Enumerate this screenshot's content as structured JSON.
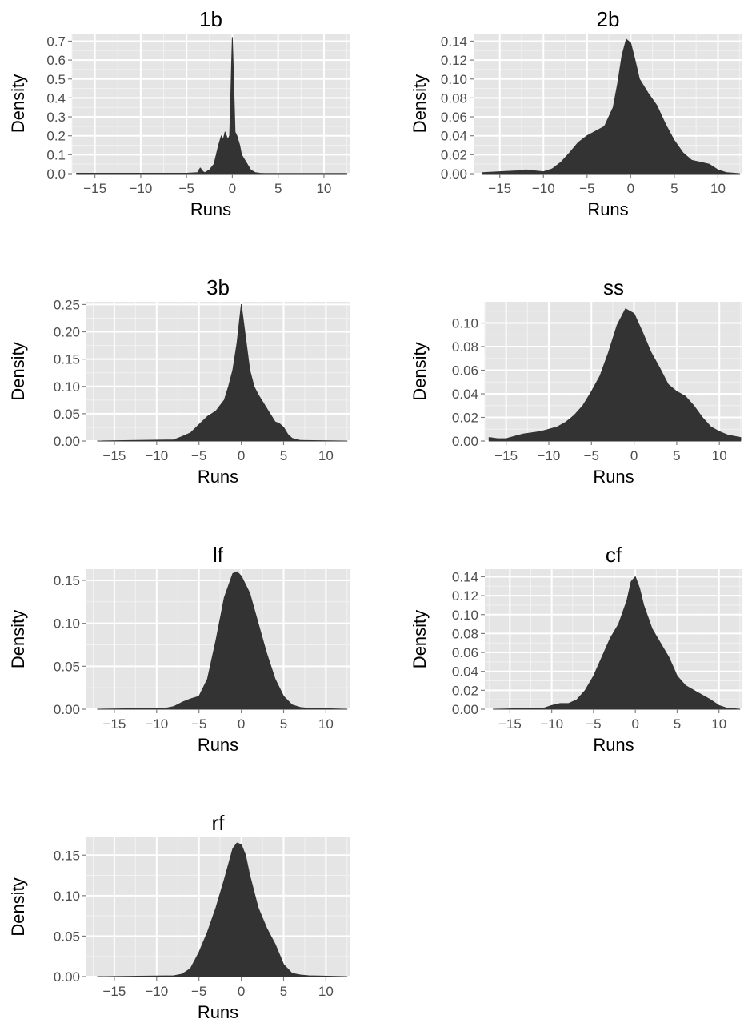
{
  "chart_data": [
    {
      "type": "area",
      "title": "1b",
      "xlabel": "Runs",
      "ylabel": "Density",
      "xlim": [
        -17.5,
        12.8
      ],
      "ylim": [
        0,
        0.74
      ],
      "xticks": [
        -15,
        -10,
        -5,
        0,
        5,
        10
      ],
      "xtick_labels": [
        "−15",
        "−10",
        "−5",
        "0",
        "5",
        "10"
      ],
      "yticks": [
        0,
        0.1,
        0.2,
        0.3,
        0.4,
        0.5,
        0.6,
        0.7
      ],
      "ytick_labels": [
        "0.0",
        "0.1",
        "0.2",
        "0.3",
        "0.4",
        "0.5",
        "0.6",
        "0.7"
      ],
      "grid": true,
      "x": [
        -17,
        -5,
        -3.8,
        -3.5,
        -3.2,
        -3,
        -2.5,
        -2,
        -1.5,
        -1.2,
        -1,
        -0.8,
        -0.5,
        -0.3,
        -0.2,
        -0.1,
        0,
        0.1,
        0.3,
        0.5,
        0.8,
        1,
        1.5,
        2,
        2.5,
        3,
        3.5,
        12.5
      ],
      "y": [
        0.002,
        0.002,
        0.005,
        0.03,
        0.01,
        0.005,
        0.02,
        0.05,
        0.15,
        0.2,
        0.18,
        0.22,
        0.18,
        0.2,
        0.35,
        0.55,
        0.72,
        0.55,
        0.22,
        0.2,
        0.15,
        0.1,
        0.06,
        0.02,
        0.005,
        0.002,
        0.001,
        0.001
      ]
    },
    {
      "type": "area",
      "title": "2b",
      "xlabel": "Runs",
      "ylabel": "Density",
      "xlim": [
        -18,
        12.8
      ],
      "ylim": [
        0,
        0.148
      ],
      "xticks": [
        -15,
        -10,
        -5,
        0,
        5,
        10
      ],
      "xtick_labels": [
        "−15",
        "−10",
        "−5",
        "0",
        "5",
        "10"
      ],
      "yticks": [
        0,
        0.02,
        0.04,
        0.06,
        0.08,
        0.1,
        0.12,
        0.14
      ],
      "ytick_labels": [
        "0.00",
        "0.02",
        "0.04",
        "0.06",
        "0.08",
        "0.10",
        "0.12",
        "0.14"
      ],
      "grid": true,
      "x": [
        -17,
        -15,
        -13,
        -12,
        -11,
        -10,
        -9,
        -8,
        -7,
        -6,
        -5,
        -4,
        -3,
        -2,
        -1.5,
        -1,
        -0.5,
        0,
        0.5,
        1,
        2,
        3,
        4,
        5,
        6,
        7,
        8,
        9,
        10,
        11,
        12.5
      ],
      "y": [
        0.001,
        0.002,
        0.003,
        0.004,
        0.003,
        0.002,
        0.005,
        0.012,
        0.022,
        0.033,
        0.04,
        0.045,
        0.05,
        0.07,
        0.095,
        0.125,
        0.142,
        0.138,
        0.12,
        0.1,
        0.085,
        0.072,
        0.052,
        0.035,
        0.022,
        0.014,
        0.012,
        0.01,
        0.004,
        0.001,
        0
      ]
    },
    {
      "type": "area",
      "title": "3b",
      "xlabel": "Runs",
      "ylabel": "Density",
      "xlim": [
        -18.3,
        12.8
      ],
      "ylim": [
        0,
        0.255
      ],
      "xticks": [
        -15,
        -10,
        -5,
        0,
        5,
        10
      ],
      "xtick_labels": [
        "−15",
        "−10",
        "−5",
        "0",
        "5",
        "10"
      ],
      "yticks": [
        0,
        0.05,
        0.1,
        0.15,
        0.2,
        0.25
      ],
      "ytick_labels": [
        "0.00",
        "0.05",
        "0.10",
        "0.15",
        "0.20",
        "0.25"
      ],
      "grid": true,
      "x": [
        -17,
        -8,
        -7,
        -6,
        -5,
        -4,
        -3,
        -2,
        -1.5,
        -1,
        -0.5,
        0,
        0.5,
        1,
        1.5,
        2,
        3,
        4,
        4.5,
        5,
        5.5,
        6,
        7,
        12.5
      ],
      "y": [
        0,
        0.002,
        0.008,
        0.015,
        0.03,
        0.045,
        0.055,
        0.075,
        0.1,
        0.13,
        0.18,
        0.25,
        0.19,
        0.13,
        0.1,
        0.085,
        0.06,
        0.035,
        0.032,
        0.025,
        0.012,
        0.005,
        0.001,
        0
      ]
    },
    {
      "type": "area",
      "title": "ss",
      "xlabel": "Runs",
      "ylabel": "Density",
      "xlim": [
        -17.5,
        12.7
      ],
      "ylim": [
        0,
        0.118
      ],
      "xticks": [
        -15,
        -10,
        -5,
        0,
        5,
        10
      ],
      "xtick_labels": [
        "−15",
        "−10",
        "−5",
        "0",
        "5",
        "10"
      ],
      "yticks": [
        0,
        0.02,
        0.04,
        0.06,
        0.08,
        0.1
      ],
      "ytick_labels": [
        "0.00",
        "0.02",
        "0.04",
        "0.06",
        "0.08",
        "0.10"
      ],
      "grid": true,
      "x": [
        -17,
        -16,
        -15,
        -14,
        -13,
        -12,
        -11,
        -10,
        -9,
        -8,
        -7,
        -6,
        -5,
        -4,
        -3,
        -2,
        -1,
        0,
        1,
        2,
        3,
        4,
        5,
        6,
        7,
        8,
        9,
        10,
        11,
        12.5
      ],
      "y": [
        0.003,
        0.002,
        0.002,
        0.004,
        0.006,
        0.007,
        0.008,
        0.01,
        0.012,
        0.016,
        0.022,
        0.03,
        0.042,
        0.055,
        0.075,
        0.098,
        0.112,
        0.108,
        0.092,
        0.075,
        0.062,
        0.048,
        0.042,
        0.038,
        0.03,
        0.02,
        0.012,
        0.008,
        0.005,
        0.003
      ]
    },
    {
      "type": "area",
      "title": "lf",
      "xlabel": "Runs",
      "ylabel": "Density",
      "xlim": [
        -18.3,
        12.8
      ],
      "ylim": [
        0,
        0.163
      ],
      "xticks": [
        -15,
        -10,
        -5,
        0,
        5,
        10
      ],
      "xtick_labels": [
        "−15",
        "−10",
        "−5",
        "0",
        "5",
        "10"
      ],
      "yticks": [
        0,
        0.05,
        0.1,
        0.15
      ],
      "ytick_labels": [
        "0.00",
        "0.05",
        "0.10",
        "0.15"
      ],
      "grid": true,
      "x": [
        -17,
        -9,
        -8,
        -7,
        -6,
        -5,
        -4,
        -3,
        -2,
        -1,
        -0.5,
        0,
        1,
        2,
        3,
        4,
        5,
        6,
        7,
        8,
        12.5
      ],
      "y": [
        0,
        0.001,
        0.003,
        0.008,
        0.012,
        0.015,
        0.035,
        0.08,
        0.13,
        0.158,
        0.16,
        0.155,
        0.135,
        0.1,
        0.065,
        0.035,
        0.015,
        0.005,
        0.002,
        0.001,
        0
      ]
    },
    {
      "type": "area",
      "title": "cf",
      "xlabel": "Runs",
      "ylabel": "Density",
      "xlim": [
        -18,
        12.8
      ],
      "ylim": [
        0,
        0.148
      ],
      "xticks": [
        -15,
        -10,
        -5,
        0,
        5,
        10
      ],
      "xtick_labels": [
        "−15",
        "−10",
        "−5",
        "0",
        "5",
        "10"
      ],
      "yticks": [
        0,
        0.02,
        0.04,
        0.06,
        0.08,
        0.1,
        0.12,
        0.14
      ],
      "ytick_labels": [
        "0.00",
        "0.02",
        "0.04",
        "0.06",
        "0.08",
        "0.10",
        "0.12",
        "0.14"
      ],
      "grid": true,
      "x": [
        -17,
        -11,
        -10,
        -9,
        -8,
        -7,
        -6,
        -5,
        -4,
        -3,
        -2,
        -1,
        -0.5,
        0,
        0.5,
        1,
        2,
        3,
        4,
        5,
        6,
        7,
        8,
        9,
        10,
        11,
        12.5
      ],
      "y": [
        0,
        0.001,
        0.004,
        0.006,
        0.006,
        0.01,
        0.02,
        0.035,
        0.055,
        0.075,
        0.09,
        0.115,
        0.135,
        0.14,
        0.128,
        0.11,
        0.085,
        0.07,
        0.055,
        0.035,
        0.025,
        0.02,
        0.015,
        0.01,
        0.004,
        0.001,
        0
      ]
    },
    {
      "type": "area",
      "title": "rf",
      "xlabel": "Runs",
      "ylabel": "Density",
      "xlim": [
        -18.3,
        12.8
      ],
      "ylim": [
        0,
        0.172
      ],
      "xticks": [
        -15,
        -10,
        -5,
        0,
        5,
        10
      ],
      "xtick_labels": [
        "−15",
        "−10",
        "−5",
        "0",
        "5",
        "10"
      ],
      "yticks": [
        0,
        0.05,
        0.1,
        0.15
      ],
      "ytick_labels": [
        "0.00",
        "0.05",
        "0.10",
        "0.15"
      ],
      "grid": true,
      "x": [
        -17,
        -8,
        -7,
        -6,
        -5,
        -4,
        -3,
        -2,
        -1,
        -0.5,
        0,
        0.5,
        1,
        2,
        3,
        4,
        5,
        6,
        7,
        8,
        12.5
      ],
      "y": [
        0,
        0.001,
        0.003,
        0.01,
        0.03,
        0.055,
        0.085,
        0.12,
        0.158,
        0.165,
        0.163,
        0.15,
        0.125,
        0.085,
        0.06,
        0.04,
        0.015,
        0.004,
        0.002,
        0.001,
        0
      ]
    }
  ],
  "colors": {
    "panel_background": "#e5e5e5",
    "grid_major": "#ffffff",
    "grid_minor": "#f2f2f2",
    "fill": "#333333",
    "tick_text": "#4d4d4d",
    "tick_mark": "#7f7f7f"
  }
}
